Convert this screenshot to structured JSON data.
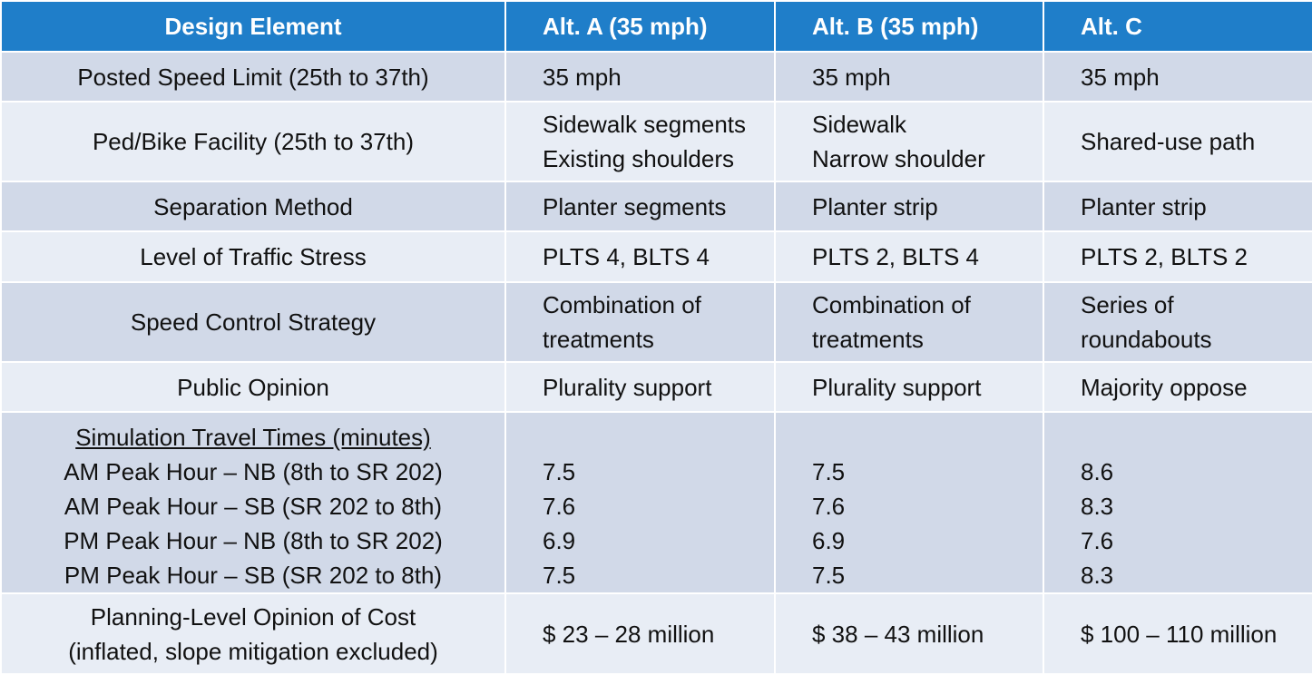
{
  "header": {
    "design_element": "Design Element",
    "alt_a": "Alt. A (35 mph)",
    "alt_b": "Alt. B (35 mph)",
    "alt_c": "Alt. C"
  },
  "rows": [
    {
      "label": [
        "Posted Speed Limit (25th to 37th)"
      ],
      "a": [
        "35 mph"
      ],
      "b": [
        "35 mph"
      ],
      "c": [
        "35 mph"
      ]
    },
    {
      "label": [
        "Ped/Bike Facility (25th to 37th)"
      ],
      "a": [
        "Sidewalk segments",
        "Existing shoulders"
      ],
      "b": [
        "Sidewalk",
        "Narrow shoulder"
      ],
      "c": [
        "Shared-use path"
      ]
    },
    {
      "label": [
        "Separation Method"
      ],
      "a": [
        "Planter segments"
      ],
      "b": [
        "Planter strip"
      ],
      "c": [
        "Planter strip"
      ]
    },
    {
      "label": [
        "Level of Traffic Stress"
      ],
      "a": [
        "PLTS 4, BLTS 4"
      ],
      "b": [
        "PLTS 2, BLTS 4"
      ],
      "c": [
        "PLTS 2, BLTS 2"
      ]
    },
    {
      "label": [
        "Speed Control Strategy"
      ],
      "a": [
        "Combination of",
        "treatments"
      ],
      "b": [
        "Combination of",
        "treatments"
      ],
      "c": [
        "Series of",
        "roundabouts"
      ]
    },
    {
      "label": [
        "Public Opinion"
      ],
      "a": [
        "Plurality support"
      ],
      "b": [
        "Plurality support"
      ],
      "c": [
        "Majority oppose"
      ]
    },
    {
      "label": [
        "Simulation Travel Times (minutes)",
        "AM Peak Hour – NB (8th to SR 202)",
        "AM Peak Hour – SB (SR 202 to 8th)",
        "PM Peak Hour – NB (8th to SR 202)",
        "PM Peak Hour – SB (SR 202 to 8th)"
      ],
      "a": [
        "7.5",
        "7.6",
        "6.9",
        "7.5"
      ],
      "b": [
        "7.5",
        "7.6",
        "6.9",
        "7.5"
      ],
      "c": [
        "8.6",
        "8.3",
        "7.6",
        "8.3"
      ]
    },
    {
      "label": [
        "Planning-Level Opinion of Cost",
        "(inflated, slope mitigation excluded)"
      ],
      "a": [
        "$ 23 – 28 million"
      ],
      "b": [
        "$ 38 – 43 million"
      ],
      "c": [
        "$ 100 – 110 million"
      ]
    }
  ]
}
